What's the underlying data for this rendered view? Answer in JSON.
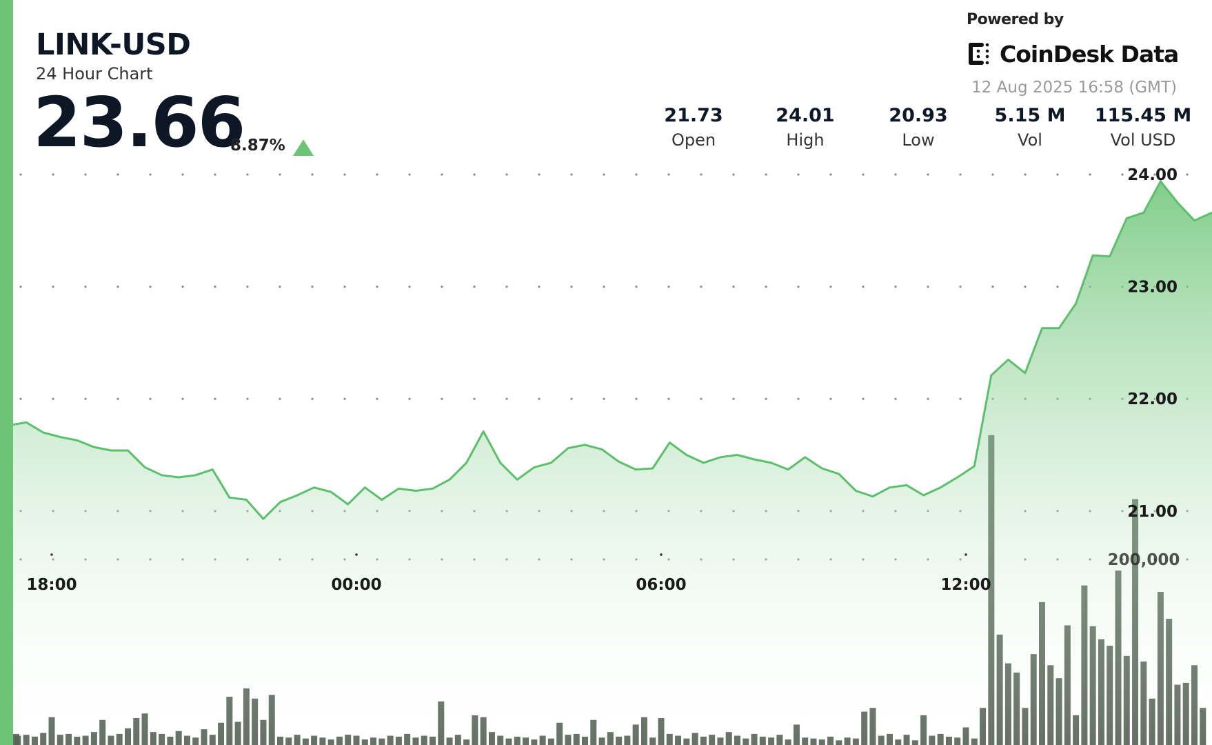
{
  "header": {
    "symbol": "LINK-USD",
    "subtitle": "24 Hour Chart",
    "price": "23.66",
    "change_pct": "8.87%",
    "change_direction": "up",
    "powered_by": "Powered by",
    "brand": "CoinDesk Data",
    "timestamp": "12 Aug 2025 16:58 (GMT)"
  },
  "stats": [
    {
      "value": "21.73",
      "label": "Open"
    },
    {
      "value": "24.01",
      "label": "High"
    },
    {
      "value": "20.93",
      "label": "Low"
    },
    {
      "value": "5.15 M",
      "label": "Vol"
    },
    {
      "value": "115.45 M",
      "label": "Vol USD"
    }
  ],
  "colors": {
    "accent": "#6cc476",
    "line": "#5bbf6b",
    "volume": "#4b5a4b",
    "text": "#0d1726"
  },
  "chart_data": {
    "type": "line",
    "grid": true,
    "y_ticks": [
      "24.00",
      "23.00",
      "22.00",
      "21.00"
    ],
    "y_tick_values": [
      24,
      23,
      22,
      21
    ],
    "x_ticks": [
      "18:00",
      "00:00",
      "06:00",
      "12:00"
    ],
    "volume_tick": "200,000",
    "volume_tick_value": 200000,
    "price_points": [
      [
        "17:10",
        21.77
      ],
      [
        "17:30",
        21.79
      ],
      [
        "17:50",
        21.7
      ],
      [
        "18:10",
        21.66
      ],
      [
        "18:30",
        21.63
      ],
      [
        "18:50",
        21.57
      ],
      [
        "19:10",
        21.54
      ],
      [
        "19:30",
        21.54
      ],
      [
        "19:50",
        21.39
      ],
      [
        "20:10",
        21.32
      ],
      [
        "20:30",
        21.3
      ],
      [
        "20:50",
        21.32
      ],
      [
        "21:10",
        21.37
      ],
      [
        "21:30",
        21.12
      ],
      [
        "21:50",
        21.1
      ],
      [
        "22:10",
        20.93
      ],
      [
        "22:30",
        21.08
      ],
      [
        "22:50",
        21.14
      ],
      [
        "23:10",
        21.21
      ],
      [
        "23:30",
        21.17
      ],
      [
        "23:50",
        21.06
      ],
      [
        "00:10",
        21.21
      ],
      [
        "00:30",
        21.1
      ],
      [
        "00:50",
        21.2
      ],
      [
        "01:10",
        21.18
      ],
      [
        "01:30",
        21.2
      ],
      [
        "01:50",
        21.28
      ],
      [
        "02:10",
        21.43
      ],
      [
        "02:30",
        21.71
      ],
      [
        "02:50",
        21.43
      ],
      [
        "03:10",
        21.28
      ],
      [
        "03:30",
        21.39
      ],
      [
        "03:50",
        21.43
      ],
      [
        "04:10",
        21.56
      ],
      [
        "04:30",
        21.59
      ],
      [
        "04:50",
        21.55
      ],
      [
        "05:10",
        21.44
      ],
      [
        "05:30",
        21.37
      ],
      [
        "05:50",
        21.38
      ],
      [
        "06:10",
        21.61
      ],
      [
        "06:30",
        21.5
      ],
      [
        "06:50",
        21.43
      ],
      [
        "07:10",
        21.48
      ],
      [
        "07:30",
        21.5
      ],
      [
        "07:50",
        21.46
      ],
      [
        "08:10",
        21.43
      ],
      [
        "08:30",
        21.37
      ],
      [
        "08:50",
        21.48
      ],
      [
        "09:10",
        21.38
      ],
      [
        "09:30",
        21.33
      ],
      [
        "09:50",
        21.18
      ],
      [
        "10:10",
        21.13
      ],
      [
        "10:30",
        21.21
      ],
      [
        "10:50",
        21.23
      ],
      [
        "11:10",
        21.14
      ],
      [
        "11:30",
        21.21
      ],
      [
        "11:50",
        21.3
      ],
      [
        "12:10",
        21.4
      ],
      [
        "12:30",
        22.21
      ],
      [
        "12:50",
        22.35
      ],
      [
        "13:10",
        22.23
      ],
      [
        "13:30",
        22.63
      ],
      [
        "13:50",
        22.63
      ],
      [
        "14:10",
        22.85
      ],
      [
        "14:30",
        23.28
      ],
      [
        "14:50",
        23.27
      ],
      [
        "15:10",
        23.61
      ],
      [
        "15:30",
        23.66
      ],
      [
        "15:50",
        23.94
      ],
      [
        "16:10",
        23.75
      ],
      [
        "16:30",
        23.59
      ],
      [
        "16:50",
        23.66
      ]
    ],
    "volume_start": "17:10",
    "volume_interval_minutes": 10,
    "volume": [
      12000,
      10000,
      11000,
      9000,
      13000,
      30000,
      11000,
      12000,
      9000,
      10000,
      14000,
      27000,
      10000,
      12000,
      18000,
      29000,
      34000,
      14000,
      12000,
      9000,
      15000,
      10000,
      8000,
      17000,
      11000,
      24000,
      52000,
      25000,
      61000,
      50000,
      27000,
      54000,
      9000,
      8000,
      11000,
      7000,
      10000,
      8000,
      6000,
      9000,
      11000,
      10000,
      6000,
      8000,
      7000,
      10000,
      9000,
      12000,
      8000,
      10000,
      9000,
      47000,
      8000,
      11000,
      6000,
      32000,
      30000,
      14000,
      10000,
      7000,
      9000,
      8000,
      6000,
      10000,
      7000,
      24000,
      11000,
      12000,
      9000,
      27000,
      8000,
      14000,
      9000,
      10000,
      22000,
      30000,
      8000,
      29000,
      12000,
      10000,
      7000,
      13000,
      9000,
      11000,
      8000,
      14000,
      10000,
      7000,
      12000,
      9000,
      8000,
      11000,
      6000,
      22000,
      8000,
      7000,
      6000,
      9000,
      5000,
      8000,
      7000,
      36000,
      40000,
      10000,
      12000,
      6000,
      11000,
      5000,
      32000,
      10000,
      12000,
      9000,
      8000,
      19000,
      7000,
      40000,
      334000,
      119000,
      88000,
      78000,
      40000,
      98000,
      154000,
      86000,
      72000,
      129000,
      32000,
      172000,
      128000,
      114000,
      107000,
      188000,
      96000,
      265000,
      90000,
      50000,
      165000,
      136000,
      65000,
      67000,
      86000,
      40000
    ]
  }
}
